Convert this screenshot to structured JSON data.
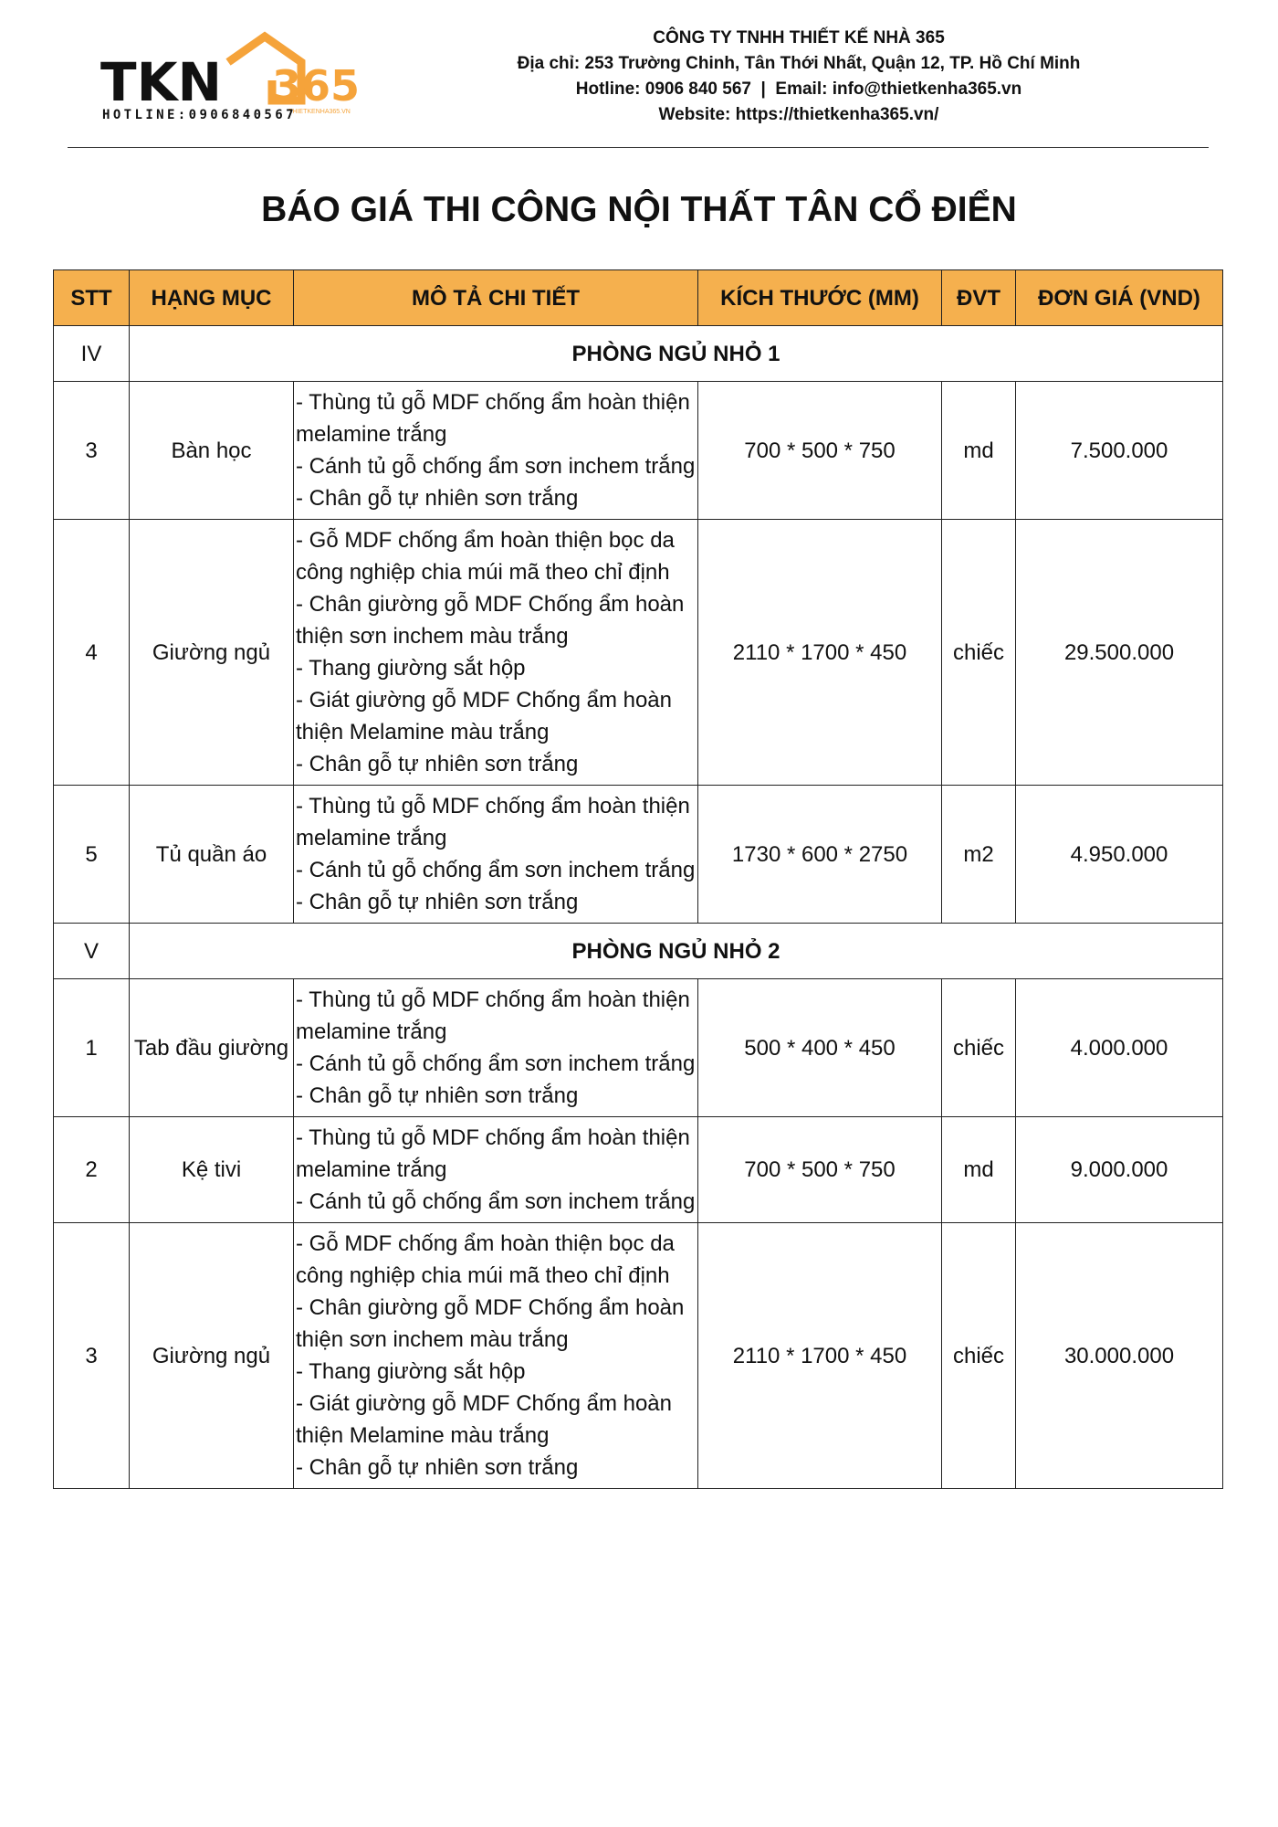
{
  "header": {
    "logo": {
      "brand": "TKN",
      "number": "365",
      "site": "THIETKENHA365.VN",
      "hotline": "HOTLINE:0906840567"
    },
    "company": "CÔNG TY TNHH THIẾT KẾ NHÀ 365",
    "address": "Địa chỉ: 253 Trường Chinh, Tân Thới Nhất, Quận 12, TP. Hồ Chí Minh",
    "contact": "Hotline: 0906 840 567  |  Email: info@thietkenha365.vn",
    "website": "Website: https://thietkenha365.vn/"
  },
  "title": "BÁO GIÁ THI CÔNG NỘI THẤT TÂN CỔ ĐIỂN",
  "table": {
    "headers": [
      "STT",
      "HẠNG MỤC",
      "MÔ TẢ CHI TIẾT",
      "KÍCH THƯỚC (MM)",
      "ĐVT",
      "ĐƠN GIÁ (VND)"
    ],
    "rows": [
      {
        "stt": "IV",
        "section": "PHÒNG NGỦ NHỎ 1"
      },
      {
        "stt": "3",
        "item": "Bàn học",
        "description": [
          "- Thùng tủ gỗ MDF chống ẩm hoàn thiện melamine trắng",
          "- Cánh tủ gỗ chống ẩm sơn inchem trắng",
          "- Chân gỗ tự nhiên sơn trắng"
        ],
        "size": "700 * 500 * 750",
        "unit": "md",
        "price": "7.500.000"
      },
      {
        "stt": "4",
        "item": "Giường ngủ",
        "description": [
          "- Gỗ MDF chống ẩm hoàn thiện bọc da công nghiệp chia múi mã theo chỉ định",
          "- Chân giường gỗ MDF Chống ẩm hoàn thiện sơn inchem màu trắng",
          "- Thang giường sắt hộp",
          "- Giát giường gỗ MDF Chống ẩm hoàn thiện Melamine màu trắng",
          "- Chân gỗ tự nhiên sơn trắng"
        ],
        "size": "2110 * 1700 * 450",
        "unit": "chiếc",
        "price": "29.500.000"
      },
      {
        "stt": "5",
        "item": "Tủ quần áo",
        "description": [
          "- Thùng tủ gỗ MDF chống ẩm hoàn thiện melamine trắng",
          "- Cánh tủ gỗ chống ẩm sơn inchem trắng",
          "- Chân gỗ tự nhiên sơn trắng"
        ],
        "size": "1730 * 600 * 2750",
        "unit": "m2",
        "price": "4.950.000"
      },
      {
        "stt": "V",
        "section": "PHÒNG NGỦ NHỎ 2"
      },
      {
        "stt": "1",
        "item": "Tab đầu giường",
        "description": [
          "- Thùng tủ gỗ MDF chống ẩm hoàn thiện melamine trắng",
          "- Cánh tủ gỗ chống ẩm sơn inchem trắng",
          "- Chân gỗ tự nhiên sơn trắng"
        ],
        "size": "500 * 400 * 450",
        "unit": "chiếc",
        "price": "4.000.000"
      },
      {
        "stt": "2",
        "item": "Kệ tivi",
        "description": [
          "- Thùng tủ gỗ MDF chống ẩm hoàn thiện melamine trắng",
          "- Cánh tủ gỗ chống ẩm sơn inchem trắng"
        ],
        "size": "700 * 500 * 750",
        "unit": "md",
        "price": "9.000.000"
      },
      {
        "stt": "3",
        "item": "Giường ngủ",
        "description": [
          "- Gỗ MDF chống ẩm hoàn thiện bọc da công nghiệp chia múi mã theo chỉ định",
          "- Chân giường gỗ MDF Chống ẩm hoàn thiện sơn inchem màu trắng",
          "- Thang giường sắt hộp",
          "- Giát giường gỗ MDF Chống ẩm hoàn thiện Melamine màu trắng",
          "- Chân gỗ tự nhiên sơn trắng"
        ],
        "size": "2110 * 1700 * 450",
        "unit": "chiếc",
        "price": "30.000.000"
      }
    ]
  }
}
